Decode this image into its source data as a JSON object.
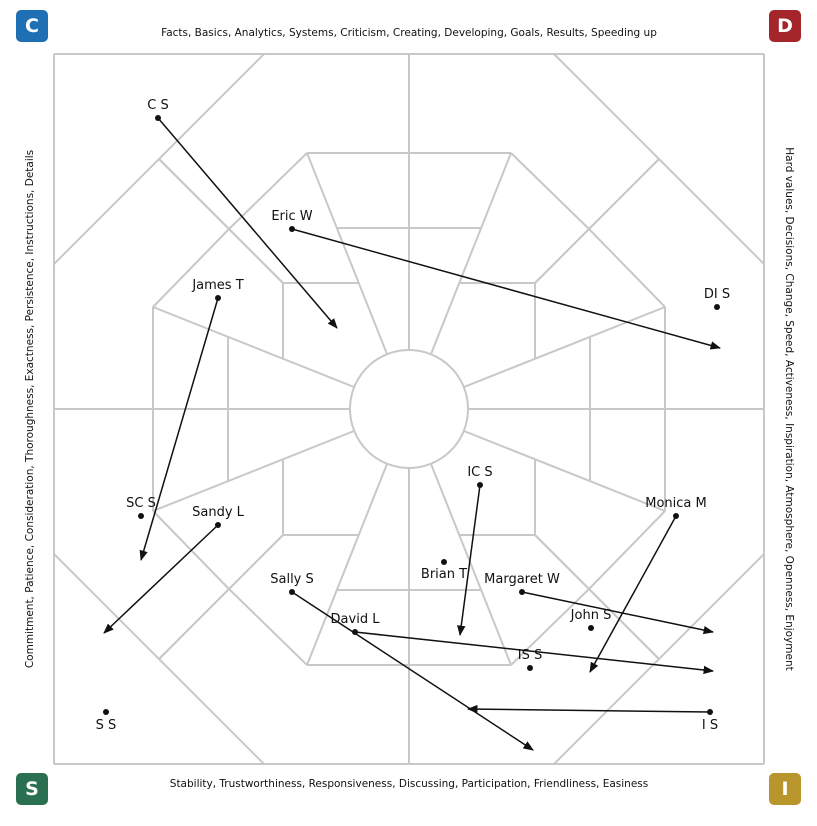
{
  "corners": {
    "top_left": {
      "letter": "C",
      "color": "#1f6fb5"
    },
    "top_right": {
      "letter": "D",
      "color": "#a4262b"
    },
    "bottom_left": {
      "letter": "S",
      "color": "#2a6f4f"
    },
    "bottom_right": {
      "letter": "I",
      "color": "#b8962c"
    }
  },
  "sides": {
    "top": "Facts, Basics, Analytics, Systems, Criticism, Creating, Developing, Goals, Results, Speeding up",
    "bottom": "Stability, Trustworthiness, Responsiveness, Discussing, Participation, Friendliness, Easiness",
    "left": "Commitment, Patience, Consideration, Thoroughness, Exactness, Persistence, Instructions, Details",
    "right": "Hard values, Decisions, Change, Speed, Activeness, Inspiration, Atmosphere, Openness, Enjoyment"
  },
  "people": [
    {
      "name": "C S",
      "has_arrow": true
    },
    {
      "name": "Eric W",
      "has_arrow": true
    },
    {
      "name": "DI S",
      "has_arrow": false
    },
    {
      "name": "James T",
      "has_arrow": true
    },
    {
      "name": "SC S",
      "has_arrow": false
    },
    {
      "name": "Sandy L",
      "has_arrow": true
    },
    {
      "name": "Sally S",
      "has_arrow": true
    },
    {
      "name": "David L",
      "has_arrow": true
    },
    {
      "name": "IC S",
      "has_arrow": true
    },
    {
      "name": "Brian T",
      "has_arrow": false
    },
    {
      "name": "Margaret W",
      "has_arrow": true
    },
    {
      "name": "John S",
      "has_arrow": false
    },
    {
      "name": "IS S",
      "has_arrow": false
    },
    {
      "name": "Monica M",
      "has_arrow": true
    },
    {
      "name": "I S",
      "has_arrow": true
    },
    {
      "name": "S S",
      "has_arrow": false
    }
  ],
  "colors": {
    "grid": "#c8c8c8",
    "marker": "#111111"
  }
}
